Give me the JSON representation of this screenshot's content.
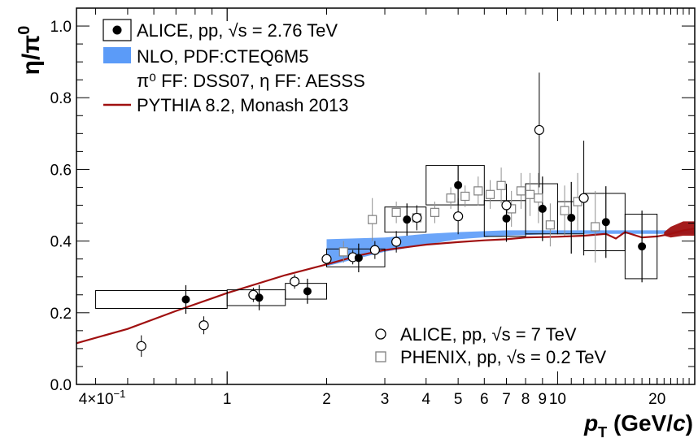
{
  "chart_data": {
    "type": "scatter",
    "xscale": "log",
    "xlim": [
      0.35,
      26
    ],
    "ylim": [
      0.0,
      1.05
    ],
    "xlabel": {
      "main": "p",
      "sub": "T",
      "unit": " (GeV/",
      "unit_italic": "c",
      "unit_end": ")"
    },
    "ylabel": {
      "main": "η/π",
      "sup": "0"
    },
    "x_tick_labels": [
      {
        "x": 0.4,
        "label": "4×10",
        "sup": "−1"
      },
      {
        "x": 1,
        "label": "1"
      },
      {
        "x": 2,
        "label": "2"
      },
      {
        "x": 3,
        "label": "3"
      },
      {
        "x": 4,
        "label": "4"
      },
      {
        "x": 5,
        "label": "5"
      },
      {
        "x": 6,
        "label": "6"
      },
      {
        "x": 7,
        "label": "7"
      },
      {
        "x": 8,
        "label": "8"
      },
      {
        "x": 9,
        "label": "9"
      },
      {
        "x": 10,
        "label": "10"
      },
      {
        "x": 20,
        "label": "20"
      }
    ],
    "y_tick_labels": [
      {
        "y": 0.0,
        "label": "0.0"
      },
      {
        "y": 0.2,
        "label": "0.2"
      },
      {
        "y": 0.4,
        "label": "0.4"
      },
      {
        "y": 0.6,
        "label": "0.6"
      },
      {
        "y": 0.8,
        "label": "0.8"
      },
      {
        "y": 1.0,
        "label": "1.0"
      }
    ],
    "legend_top": [
      {
        "text": "ALICE, pp, √s = 2.76 TeV",
        "marker": "filled-circle-box"
      },
      {
        "text": "NLO, PDF:CTEQ6M5",
        "marker": "blue-band"
      },
      {
        "text": "π⁰ FF: DSS07, η FF: AESSS",
        "marker": "none"
      },
      {
        "text": "PYTHIA 8.2, Monash 2013",
        "marker": "red-line"
      }
    ],
    "legend_bottom": [
      {
        "text": "ALICE, pp, √s = 7 TeV",
        "marker": "open-circle"
      },
      {
        "text": "PHENIX, pp, √s = 0.2 TeV",
        "marker": "open-square"
      }
    ],
    "series": [
      {
        "name": "ALICE, pp, √s = 2.76 TeV",
        "color": "#000000",
        "points": [
          {
            "x": 0.75,
            "y": 0.237,
            "err": 0.04,
            "sys": 0.025,
            "xlo": 0.4,
            "xhi": 1.0
          },
          {
            "x": 1.25,
            "y": 0.242,
            "err": 0.035,
            "sys": 0.022,
            "xlo": 1.0,
            "xhi": 1.5
          },
          {
            "x": 1.75,
            "y": 0.26,
            "err": 0.035,
            "sys": 0.022,
            "xlo": 1.5,
            "xhi": 2.0
          },
          {
            "x": 2.5,
            "y": 0.353,
            "err": 0.04,
            "sys": 0.025,
            "xlo": 2.0,
            "xhi": 3.0
          },
          {
            "x": 3.5,
            "y": 0.46,
            "err": 0.045,
            "sys": 0.035,
            "xlo": 3.0,
            "xhi": 4.0
          },
          {
            "x": 5.0,
            "y": 0.556,
            "err": 0.055,
            "sys": 0.055,
            "xlo": 4.0,
            "xhi": 6.0
          },
          {
            "x": 7.0,
            "y": 0.463,
            "err": 0.065,
            "sys": 0.05,
            "xlo": 6.0,
            "xhi": 8.0
          },
          {
            "x": 9.0,
            "y": 0.49,
            "err": 0.09,
            "sys": 0.07,
            "xlo": 8.0,
            "xhi": 10.0
          },
          {
            "x": 11.0,
            "y": 0.465,
            "err": 0.1,
            "sys": 0.045,
            "xlo": 10.0,
            "xhi": 12.0
          },
          {
            "x": 14.0,
            "y": 0.453,
            "err": 0.1,
            "sys": 0.08,
            "xlo": 12.0,
            "xhi": 16.0
          },
          {
            "x": 18.0,
            "y": 0.385,
            "err": 0.1,
            "sys": 0.09,
            "xlo": 16.0,
            "xhi": 20.0
          }
        ]
      },
      {
        "name": "ALICE, pp, √s = 7 TeV",
        "color": "#000000",
        "points": [
          {
            "x": 0.55,
            "y": 0.107,
            "err": 0.03
          },
          {
            "x": 0.85,
            "y": 0.165,
            "err": 0.025
          },
          {
            "x": 1.2,
            "y": 0.25,
            "err": 0.02
          },
          {
            "x": 1.6,
            "y": 0.287,
            "err": 0.02
          },
          {
            "x": 2.0,
            "y": 0.35,
            "err": 0.02
          },
          {
            "x": 2.4,
            "y": 0.355,
            "err": 0.02
          },
          {
            "x": 2.8,
            "y": 0.375,
            "err": 0.025
          },
          {
            "x": 3.25,
            "y": 0.398,
            "err": 0.03
          },
          {
            "x": 3.75,
            "y": 0.465,
            "err": 0.035
          },
          {
            "x": 5.0,
            "y": 0.469,
            "err": 0.05
          },
          {
            "x": 7.0,
            "y": 0.5,
            "err": 0.06
          },
          {
            "x": 8.8,
            "y": 0.71,
            "err": 0.16
          },
          {
            "x": 12.0,
            "y": 0.52,
            "err": 0.16
          }
        ]
      },
      {
        "name": "PHENIX, pp, √s = 0.2 TeV",
        "color": "#808080",
        "points": [
          {
            "x": 2.25,
            "y": 0.37,
            "err": 0.03
          },
          {
            "x": 2.75,
            "y": 0.46,
            "err": 0.06
          },
          {
            "x": 3.25,
            "y": 0.48,
            "err": 0.03
          },
          {
            "x": 3.75,
            "y": 0.465,
            "err": 0.03
          },
          {
            "x": 4.25,
            "y": 0.48,
            "err": 0.03
          },
          {
            "x": 4.75,
            "y": 0.52,
            "err": 0.03
          },
          {
            "x": 5.25,
            "y": 0.525,
            "err": 0.03
          },
          {
            "x": 5.75,
            "y": 0.54,
            "err": 0.04
          },
          {
            "x": 6.25,
            "y": 0.53,
            "err": 0.04
          },
          {
            "x": 6.75,
            "y": 0.555,
            "err": 0.05
          },
          {
            "x": 7.25,
            "y": 0.49,
            "err": 0.05
          },
          {
            "x": 7.75,
            "y": 0.54,
            "err": 0.05
          },
          {
            "x": 8.25,
            "y": 0.53,
            "err": 0.06
          },
          {
            "x": 8.75,
            "y": 0.52,
            "err": 0.07
          },
          {
            "x": 9.5,
            "y": 0.445,
            "err": 0.06
          },
          {
            "x": 10.5,
            "y": 0.485,
            "err": 0.07
          },
          {
            "x": 11.5,
            "y": 0.51,
            "err": 0.08
          },
          {
            "x": 13.0,
            "y": 0.44,
            "err": 0.1
          }
        ]
      }
    ],
    "nlo_band": {
      "name": "NLO, PDF:CTEQ6M5",
      "color": "#5b9bf8",
      "x": [
        2.0,
        3.0,
        4.0,
        5.0,
        7.0,
        10.0,
        14.0,
        20.0,
        26.0
      ],
      "lo": [
        0.33,
        0.37,
        0.39,
        0.405,
        0.415,
        0.42,
        0.42,
        0.42,
        0.42
      ],
      "hi": [
        0.405,
        0.41,
        0.42,
        0.425,
        0.43,
        0.43,
        0.43,
        0.43,
        0.43
      ]
    },
    "pythia": {
      "name": "PYTHIA 8.2, Monash 2013",
      "color": "#a01010",
      "x": [
        0.35,
        0.5,
        0.7,
        1.0,
        1.5,
        2.0,
        2.5,
        3.0,
        4.0,
        5.0,
        6.0,
        7.0,
        8.0,
        10.0,
        12.0,
        14.0,
        15.0,
        16.0,
        18.0,
        20.0,
        22.0,
        24.0,
        26.0
      ],
      "y": [
        0.115,
        0.155,
        0.205,
        0.255,
        0.305,
        0.335,
        0.36,
        0.375,
        0.39,
        0.397,
        0.402,
        0.405,
        0.41,
        0.412,
        0.415,
        0.42,
        0.407,
        0.425,
        0.41,
        0.413,
        0.42,
        0.43,
        0.435
      ]
    },
    "pythia_band_end": {
      "x": [
        21.0,
        22.0,
        24.0,
        26.0
      ],
      "lo": [
        0.415,
        0.41,
        0.415,
        0.415
      ],
      "hi": [
        0.425,
        0.44,
        0.455,
        0.455
      ]
    }
  }
}
